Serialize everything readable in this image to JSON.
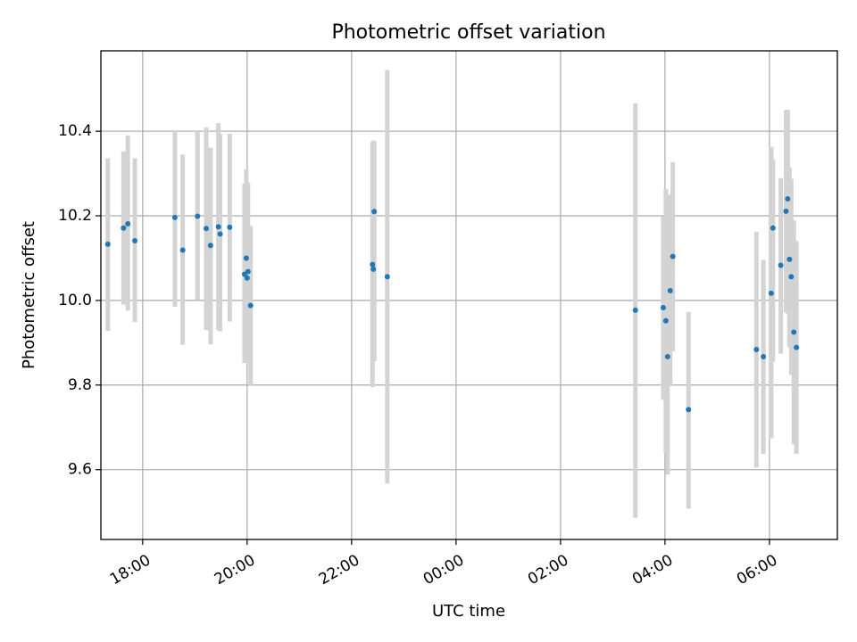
{
  "chart_data": {
    "type": "scatter",
    "title": "Photometric offset variation",
    "xlabel": "UTC time",
    "ylabel": "Photometric offset",
    "x_unit": "UTC",
    "xlim": [
      "17:12",
      "07:18"
    ],
    "ylim": [
      9.435,
      10.59
    ],
    "x_ticks": [
      "18:00",
      "20:00",
      "22:00",
      "00:00",
      "02:00",
      "04:00",
      "06:00"
    ],
    "y_ticks": [
      9.6,
      9.8,
      10.0,
      10.2,
      10.4
    ],
    "y_tick_labels": [
      "9.6",
      "9.8",
      "10.0",
      "10.2",
      "10.4"
    ],
    "grid": true,
    "colors": {
      "point": "#1f77b4",
      "error_bar": "#d3d3d3"
    },
    "series": [
      {
        "points": [
          {
            "t": "17:20",
            "y": 10.133,
            "lo": 9.928,
            "hi": 10.336
          },
          {
            "t": "17:38",
            "y": 10.171,
            "lo": 9.99,
            "hi": 10.352
          },
          {
            "t": "17:43",
            "y": 10.181,
            "lo": 9.976,
            "hi": 10.39
          },
          {
            "t": "17:51",
            "y": 10.141,
            "lo": 9.949,
            "hi": 10.336
          },
          {
            "t": "18:37",
            "y": 10.196,
            "lo": 9.985,
            "hi": 10.403
          },
          {
            "t": "18:46",
            "y": 10.119,
            "lo": 9.895,
            "hi": 10.345
          },
          {
            "t": "19:03",
            "y": 10.199,
            "lo": 10.001,
            "hi": 10.4
          },
          {
            "t": "19:13",
            "y": 10.17,
            "lo": 9.93,
            "hi": 10.409
          },
          {
            "t": "19:18",
            "y": 10.13,
            "lo": 9.896,
            "hi": 10.361
          },
          {
            "t": "19:27",
            "y": 10.174,
            "lo": 9.93,
            "hi": 10.419
          },
          {
            "t": "19:29",
            "y": 10.157,
            "lo": 9.927,
            "hi": 10.393
          },
          {
            "t": "19:40",
            "y": 10.173,
            "lo": 9.95,
            "hi": 10.394
          },
          {
            "t": "19:57",
            "y": 10.062,
            "lo": 9.852,
            "hi": 10.276
          },
          {
            "t": "19:59",
            "y": 10.1,
            "lo": 9.89,
            "hi": 10.31
          },
          {
            "t": "20:00",
            "y": 10.053,
            "lo": 9.852,
            "hi": 10.252
          },
          {
            "t": "20:01",
            "y": 10.068,
            "lo": 9.858,
            "hi": 10.278
          },
          {
            "t": "20:04",
            "y": 9.988,
            "lo": 9.8,
            "hi": 10.176
          },
          {
            "t": "22:24",
            "y": 10.085,
            "lo": 9.795,
            "hi": 10.375
          },
          {
            "t": "22:25",
            "y": 10.074,
            "lo": 9.856,
            "hi": 10.378
          },
          {
            "t": "22:26",
            "y": 10.21,
            "lo": 9.856,
            "hi": 10.376
          },
          {
            "t": "22:41",
            "y": 10.056,
            "lo": 9.567,
            "hi": 10.545
          },
          {
            "t": "03:26",
            "y": 9.977,
            "lo": 9.486,
            "hi": 10.466
          },
          {
            "t": "03:58",
            "y": 9.983,
            "lo": 9.765,
            "hi": 10.198
          },
          {
            "t": "04:01",
            "y": 9.952,
            "lo": 9.638,
            "hi": 10.264
          },
          {
            "t": "04:03",
            "y": 9.867,
            "lo": 9.588,
            "hi": 10.247
          },
          {
            "t": "04:06",
            "y": 10.023,
            "lo": 9.8,
            "hi": 10.25
          },
          {
            "t": "04:09",
            "y": 10.104,
            "lo": 9.88,
            "hi": 10.327
          },
          {
            "t": "04:27",
            "y": 9.742,
            "lo": 9.508,
            "hi": 9.973
          },
          {
            "t": "05:45",
            "y": 9.884,
            "lo": 9.605,
            "hi": 10.162
          },
          {
            "t": "05:53",
            "y": 9.867,
            "lo": 9.637,
            "hi": 10.096
          },
          {
            "t": "06:02",
            "y": 10.017,
            "lo": 9.674,
            "hi": 10.363
          },
          {
            "t": "06:04",
            "y": 10.171,
            "lo": 9.855,
            "hi": 10.333
          },
          {
            "t": "06:13",
            "y": 10.083,
            "lo": 9.874,
            "hi": 10.289
          },
          {
            "t": "06:19",
            "y": 10.211,
            "lo": 9.972,
            "hi": 10.45
          },
          {
            "t": "06:21",
            "y": 10.24,
            "lo": 9.969,
            "hi": 10.451
          },
          {
            "t": "06:23",
            "y": 10.097,
            "lo": 9.89,
            "hi": 10.315
          },
          {
            "t": "06:25",
            "y": 10.056,
            "lo": 9.824,
            "hi": 10.287
          },
          {
            "t": "06:28",
            "y": 9.925,
            "lo": 9.66,
            "hi": 10.189
          },
          {
            "t": "06:31",
            "y": 9.889,
            "lo": 9.637,
            "hi": 10.14
          }
        ]
      }
    ]
  }
}
